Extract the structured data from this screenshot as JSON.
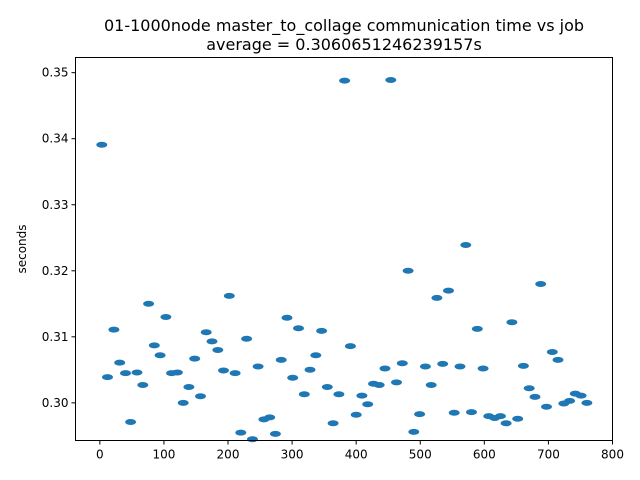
{
  "chart_data": {
    "type": "scatter",
    "title": "01-1000node master_to_collage communication time vs job",
    "subtitle": "average = 0.3060651246239157s",
    "xlabel": "",
    "ylabel": "seconds",
    "xlim": [
      -38,
      800
    ],
    "ylim": [
      0.2943,
      0.3523
    ],
    "grid": false,
    "marker_color": "#1f77b4",
    "x_ticks": [
      {
        "value": 0,
        "label": "0"
      },
      {
        "value": 100,
        "label": "100"
      },
      {
        "value": 200,
        "label": "200"
      },
      {
        "value": 300,
        "label": "300"
      },
      {
        "value": 400,
        "label": "400"
      },
      {
        "value": 500,
        "label": "500"
      },
      {
        "value": 600,
        "label": "600"
      },
      {
        "value": 700,
        "label": "700"
      },
      {
        "value": 800,
        "label": "800"
      }
    ],
    "y_ticks": [
      {
        "value": 0.3,
        "label": "0.30"
      },
      {
        "value": 0.31,
        "label": "0.31"
      },
      {
        "value": 0.32,
        "label": "0.32"
      },
      {
        "value": 0.33,
        "label": "0.33"
      },
      {
        "value": 0.34,
        "label": "0.34"
      },
      {
        "value": 0.35,
        "label": "0.35"
      }
    ],
    "series": [
      {
        "points": [
          [
            3,
            0.3391
          ],
          [
            12,
            0.3039
          ],
          [
            22,
            0.3111
          ],
          [
            31,
            0.3061
          ],
          [
            40,
            0.3045
          ],
          [
            48,
            0.2971
          ],
          [
            58,
            0.3046
          ],
          [
            67,
            0.3027
          ],
          [
            76,
            0.315
          ],
          [
            85,
            0.3087
          ],
          [
            94,
            0.3072
          ],
          [
            103,
            0.313
          ],
          [
            112,
            0.3045
          ],
          [
            121,
            0.3046
          ],
          [
            130,
            0.3
          ],
          [
            139,
            0.3024
          ],
          [
            148,
            0.3067
          ],
          [
            157,
            0.301
          ],
          [
            166,
            0.3107
          ],
          [
            175,
            0.3093
          ],
          [
            184,
            0.308
          ],
          [
            193,
            0.3049
          ],
          [
            202,
            0.3162
          ],
          [
            211,
            0.3045
          ],
          [
            220,
            0.2955
          ],
          [
            229,
            0.3097
          ],
          [
            238,
            0.2945
          ],
          [
            247,
            0.3055
          ],
          [
            256,
            0.2975
          ],
          [
            265,
            0.2978
          ],
          [
            274,
            0.2953
          ],
          [
            283,
            0.3065
          ],
          [
            292,
            0.3129
          ],
          [
            301,
            0.3038
          ],
          [
            310,
            0.3113
          ],
          [
            319,
            0.3013
          ],
          [
            328,
            0.305
          ],
          [
            337,
            0.3072
          ],
          [
            346,
            0.3109
          ],
          [
            355,
            0.3024
          ],
          [
            364,
            0.2969
          ],
          [
            373,
            0.3013
          ],
          [
            382,
            0.3488
          ],
          [
            391,
            0.3086
          ],
          [
            400,
            0.2982
          ],
          [
            409,
            0.3011
          ],
          [
            418,
            0.2998
          ],
          [
            427,
            0.3029
          ],
          [
            436,
            0.3027
          ],
          [
            445,
            0.3052
          ],
          [
            454,
            0.3489
          ],
          [
            463,
            0.3031
          ],
          [
            472,
            0.306
          ],
          [
            481,
            0.32
          ],
          [
            490,
            0.2956
          ],
          [
            499,
            0.2983
          ],
          [
            508,
            0.3055
          ],
          [
            517,
            0.3027
          ],
          [
            526,
            0.3159
          ],
          [
            535,
            0.3059
          ],
          [
            544,
            0.317
          ],
          [
            553,
            0.2985
          ],
          [
            562,
            0.3055
          ],
          [
            571,
            0.3239
          ],
          [
            580,
            0.2986
          ],
          [
            589,
            0.3112
          ],
          [
            598,
            0.3052
          ],
          [
            607,
            0.298
          ],
          [
            616,
            0.2977
          ],
          [
            625,
            0.298
          ],
          [
            634,
            0.2969
          ],
          [
            643,
            0.3122
          ],
          [
            652,
            0.2976
          ],
          [
            661,
            0.3056
          ],
          [
            670,
            0.3022
          ],
          [
            679,
            0.3009
          ],
          [
            688,
            0.318
          ],
          [
            697,
            0.2994
          ],
          [
            706,
            0.3077
          ],
          [
            715,
            0.3065
          ],
          [
            724,
            0.2999
          ],
          [
            733,
            0.3003
          ],
          [
            742,
            0.3014
          ],
          [
            751,
            0.3011
          ],
          [
            760,
            0.3
          ]
        ]
      }
    ]
  }
}
